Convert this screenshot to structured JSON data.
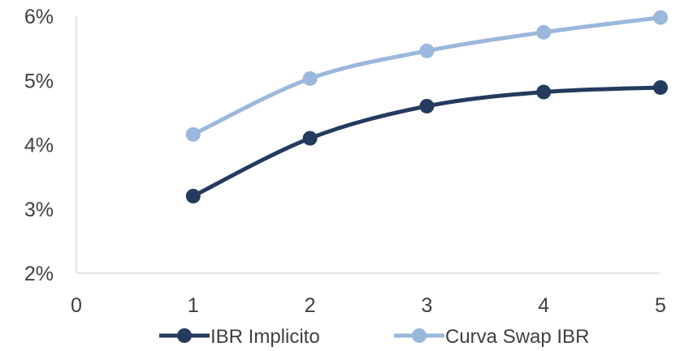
{
  "chart_data": {
    "type": "line",
    "title": "",
    "xlabel": "",
    "ylabel": "",
    "x": [
      1,
      2,
      3,
      4,
      5
    ],
    "xlim": [
      0,
      5
    ],
    "ylim": [
      2,
      6
    ],
    "x_ticks": [
      "0",
      "1",
      "2",
      "3",
      "4",
      "5"
    ],
    "y_ticks": [
      "2%",
      "3%",
      "4%",
      "5%",
      "6%"
    ],
    "y_tick_values": [
      2,
      3,
      4,
      5,
      6
    ],
    "grid": false,
    "legend_position": "bottom",
    "series": [
      {
        "name": "IBR Implicito",
        "values": [
          3.2,
          4.1,
          4.6,
          4.82,
          4.89
        ],
        "color": "#243a5e",
        "marker": "circle"
      },
      {
        "name": "Curva Swap IBR",
        "values": [
          4.16,
          5.03,
          5.46,
          5.75,
          5.98
        ],
        "color": "#9bb7db",
        "marker": "circle"
      }
    ]
  }
}
